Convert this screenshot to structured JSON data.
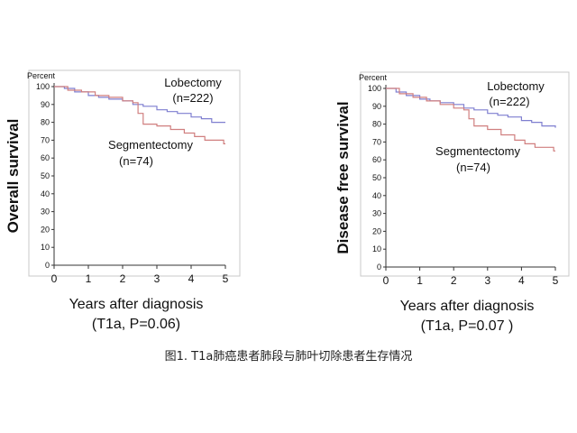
{
  "caption": "图1. T1a肺癌患者肺段与肺叶切除患者生存情况",
  "chart_data": [
    {
      "type": "line",
      "ylabel": "Overall survival",
      "y_unit": "Percent",
      "xlabel": "Years after diagnosis",
      "subtitle": "(T1a, P=0.06)",
      "xlim": [
        0,
        5
      ],
      "ylim": [
        0,
        100
      ],
      "x_ticks": [
        "0",
        "1",
        "2",
        "3",
        "4",
        "5"
      ],
      "y_ticks": [
        "0",
        "10",
        "20",
        "30",
        "40",
        "50",
        "60",
        "70",
        "80",
        "90",
        "100"
      ],
      "grid": false,
      "annotations": [
        {
          "text": "Lobectomy",
          "target": "Lobectomy"
        },
        {
          "text": "(n=222)",
          "target": "Lobectomy"
        },
        {
          "text": "Segmentectomy",
          "target": "Segmentectomy"
        },
        {
          "text": "(n=74)",
          "target": "Segmentectomy"
        }
      ],
      "series": [
        {
          "name": "Lobectomy",
          "color": "#7f7fd0",
          "step": true,
          "points": [
            [
              0,
              100
            ],
            [
              0.3,
              99
            ],
            [
              0.6,
              97
            ],
            [
              1.0,
              95
            ],
            [
              1.3,
              94
            ],
            [
              1.6,
              93
            ],
            [
              2.0,
              92
            ],
            [
              2.3,
              90
            ],
            [
              2.6,
              89
            ],
            [
              3.0,
              87
            ],
            [
              3.3,
              86
            ],
            [
              3.6,
              85
            ],
            [
              4.0,
              83
            ],
            [
              4.3,
              82
            ],
            [
              4.6,
              80
            ],
            [
              5.0,
              80
            ]
          ]
        },
        {
          "name": "Segmentectomy",
          "color": "#d07f7f",
          "step": true,
          "points": [
            [
              0,
              100
            ],
            [
              0.4,
              98
            ],
            [
              0.8,
              97
            ],
            [
              1.2,
              95
            ],
            [
              1.6,
              94
            ],
            [
              2.0,
              92
            ],
            [
              2.3,
              91
            ],
            [
              2.45,
              85
            ],
            [
              2.6,
              79
            ],
            [
              3.0,
              78
            ],
            [
              3.4,
              76
            ],
            [
              3.8,
              74
            ],
            [
              4.1,
              72
            ],
            [
              4.4,
              70
            ],
            [
              4.8,
              70
            ],
            [
              4.95,
              68
            ],
            [
              5.0,
              68
            ]
          ]
        }
      ]
    },
    {
      "type": "line",
      "ylabel": "Disease free survival",
      "y_unit": "Percent",
      "xlabel": "Years after diagnosis",
      "subtitle": "(T1a, P=0.07 )",
      "xlim": [
        0,
        5
      ],
      "ylim": [
        0,
        100
      ],
      "x_ticks": [
        "0",
        "1",
        "2",
        "3",
        "4",
        "5"
      ],
      "y_ticks": [
        "0",
        "10",
        "20",
        "30",
        "40",
        "50",
        "60",
        "70",
        "80",
        "90",
        "100"
      ],
      "grid": false,
      "annotations": [
        {
          "text": "Lobectomy",
          "target": "Lobectomy"
        },
        {
          "text": "(n=222)",
          "target": "Lobectomy"
        },
        {
          "text": "Segmentectomy",
          "target": "Segmentectomy"
        },
        {
          "text": "(n=74)",
          "target": "Segmentectomy"
        }
      ],
      "series": [
        {
          "name": "Lobectomy",
          "color": "#7f7fd0",
          "step": true,
          "points": [
            [
              0,
              100
            ],
            [
              0.3,
              98
            ],
            [
              0.6,
              96
            ],
            [
              1.0,
              94
            ],
            [
              1.3,
              93
            ],
            [
              1.6,
              92
            ],
            [
              2.0,
              91
            ],
            [
              2.3,
              89
            ],
            [
              2.6,
              88
            ],
            [
              3.0,
              86
            ],
            [
              3.3,
              85
            ],
            [
              3.6,
              84
            ],
            [
              4.0,
              82
            ],
            [
              4.3,
              81
            ],
            [
              4.6,
              79
            ],
            [
              5.0,
              78
            ]
          ]
        },
        {
          "name": "Segmentectomy",
          "color": "#d07f7f",
          "step": true,
          "points": [
            [
              0,
              100
            ],
            [
              0.4,
              97
            ],
            [
              0.8,
              95
            ],
            [
              1.2,
              93
            ],
            [
              1.6,
              91
            ],
            [
              2.0,
              89
            ],
            [
              2.3,
              88
            ],
            [
              2.45,
              83
            ],
            [
              2.6,
              79
            ],
            [
              3.0,
              77
            ],
            [
              3.4,
              74
            ],
            [
              3.8,
              71
            ],
            [
              4.1,
              69
            ],
            [
              4.4,
              67
            ],
            [
              4.8,
              67
            ],
            [
              4.95,
              65
            ],
            [
              5.0,
              65
            ]
          ]
        }
      ]
    }
  ]
}
